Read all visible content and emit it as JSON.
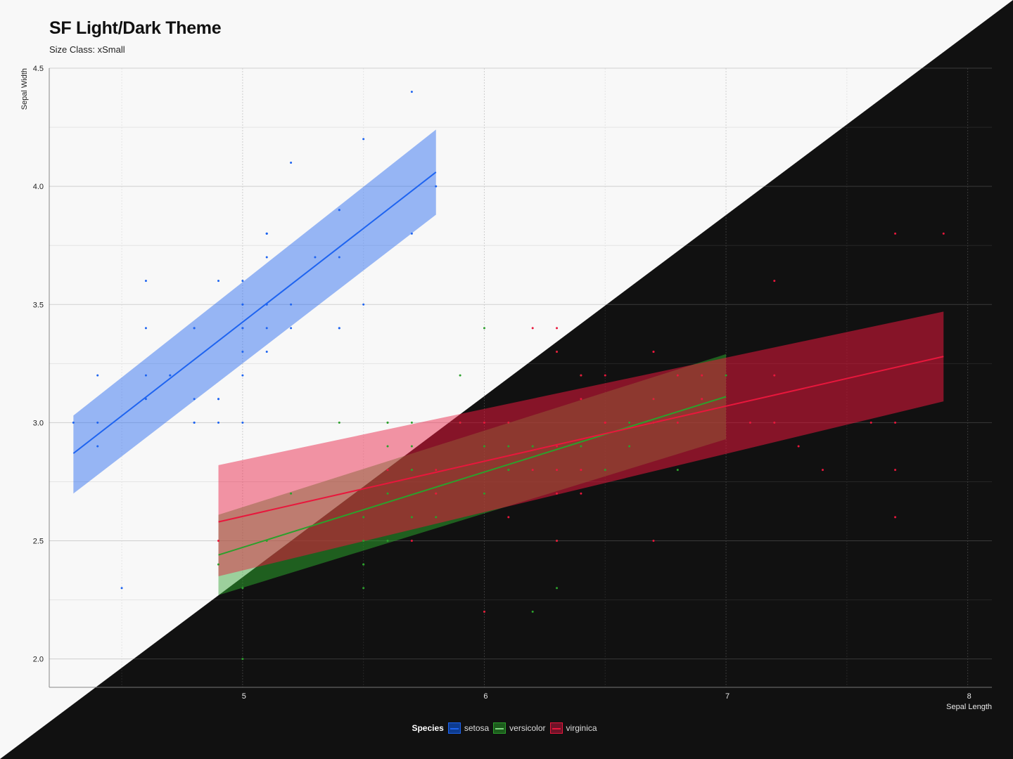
{
  "chart_data": {
    "type": "scatter",
    "title": "SF Light/Dark Theme",
    "subtitle": "Size Class: xSmall",
    "xlabel": "Sepal Length",
    "ylabel": "Sepal Width",
    "xlim": [
      4.2,
      8.1
    ],
    "ylim": [
      1.88,
      4.5
    ],
    "x_ticks": [
      5,
      6,
      7,
      8
    ],
    "y_ticks": [
      2.0,
      2.5,
      3.0,
      3.5,
      4.0,
      4.5
    ],
    "x_tick_labels": [
      "5",
      "6",
      "7",
      "8"
    ],
    "y_tick_labels": [
      "2.0",
      "2.5",
      "3.0",
      "3.5",
      "4.0",
      "4.5"
    ],
    "grid": true,
    "legend_title": "Species",
    "legend_position": "bottom-center",
    "colors": {
      "setosa": "#1e64f0",
      "versicolor": "#2ca02c",
      "virginica": "#e8173c",
      "light_bg": "#f8f8f8",
      "dark_bg": "#111111"
    },
    "series": [
      {
        "name": "setosa",
        "color": "#1e64f0",
        "x": [
          5.1,
          4.9,
          4.7,
          4.6,
          5.0,
          5.4,
          4.6,
          5.0,
          4.4,
          4.9,
          5.4,
          4.8,
          4.8,
          4.3,
          5.8,
          5.7,
          5.4,
          5.1,
          5.7,
          5.1,
          5.4,
          5.1,
          4.6,
          5.1,
          4.8,
          5.0,
          5.0,
          5.2,
          5.2,
          4.7,
          4.8,
          5.4,
          5.2,
          5.5,
          4.9,
          5.0,
          5.5,
          4.9,
          4.4,
          5.1,
          5.0,
          4.5,
          4.4,
          5.0,
          5.1,
          4.8,
          5.1,
          4.6,
          5.3,
          5.0
        ],
        "y": [
          3.5,
          3.0,
          3.2,
          3.1,
          3.6,
          3.9,
          3.4,
          3.4,
          2.9,
          3.1,
          3.7,
          3.4,
          3.0,
          3.0,
          4.0,
          4.4,
          3.9,
          3.5,
          3.8,
          3.8,
          3.4,
          3.7,
          3.6,
          3.3,
          3.4,
          3.0,
          3.4,
          3.5,
          3.4,
          3.2,
          3.1,
          3.4,
          4.1,
          4.2,
          3.1,
          3.2,
          3.5,
          3.6,
          3.0,
          3.4,
          3.5,
          2.3,
          3.2,
          3.5,
          3.8,
          3.0,
          3.8,
          3.2,
          3.7,
          3.3
        ],
        "fit": {
          "x_start": 4.3,
          "x_end": 5.8,
          "y_start": 2.87,
          "y_end": 4.06,
          "ci_start": [
            2.7,
            3.03
          ],
          "ci_end": [
            3.88,
            4.24
          ]
        }
      },
      {
        "name": "versicolor",
        "color": "#2ca02c",
        "x": [
          7.0,
          6.4,
          6.9,
          5.5,
          6.5,
          5.7,
          6.3,
          4.9,
          6.6,
          5.2,
          5.0,
          5.9,
          6.0,
          6.1,
          5.6,
          6.7,
          5.6,
          5.8,
          6.2,
          5.6,
          5.9,
          6.1,
          6.3,
          6.1,
          6.4,
          6.6,
          6.8,
          6.7,
          6.0,
          5.7,
          5.5,
          5.5,
          5.8,
          6.0,
          5.4,
          6.0,
          6.7,
          6.3,
          5.6,
          5.5,
          5.5,
          6.1,
          5.8,
          5.0,
          5.6,
          5.7,
          5.7,
          6.2,
          5.1,
          5.7
        ],
        "y": [
          3.2,
          3.2,
          3.1,
          2.3,
          2.8,
          2.8,
          3.3,
          2.4,
          2.9,
          2.7,
          2.0,
          3.0,
          2.2,
          2.9,
          2.9,
          3.1,
          3.0,
          2.7,
          2.2,
          2.5,
          3.2,
          2.8,
          2.5,
          2.8,
          2.9,
          3.0,
          2.8,
          3.0,
          2.9,
          2.6,
          2.4,
          2.4,
          2.7,
          2.7,
          3.0,
          3.4,
          3.1,
          2.3,
          3.0,
          2.5,
          2.6,
          3.0,
          2.6,
          2.3,
          2.7,
          3.0,
          2.9,
          2.9,
          2.5,
          2.8
        ],
        "fit": {
          "x_start": 4.9,
          "x_end": 7.0,
          "y_start": 2.44,
          "y_end": 3.11,
          "ci_start": [
            2.27,
            2.61
          ],
          "ci_end": [
            2.93,
            3.29
          ]
        }
      },
      {
        "name": "virginica",
        "color": "#e8173c",
        "x": [
          6.3,
          5.8,
          7.1,
          6.3,
          6.5,
          7.6,
          4.9,
          7.3,
          6.7,
          7.2,
          6.5,
          6.4,
          6.8,
          5.7,
          5.8,
          6.4,
          6.5,
          7.7,
          7.7,
          6.0,
          6.9,
          5.6,
          7.7,
          6.3,
          6.7,
          7.2,
          6.2,
          6.1,
          6.4,
          7.2,
          7.4,
          7.9,
          6.4,
          6.3,
          6.1,
          7.7,
          6.3,
          6.4,
          6.0,
          6.9,
          6.7,
          6.9,
          5.8,
          6.8,
          6.7,
          6.7,
          6.3,
          6.5,
          6.2,
          5.9
        ],
        "y": [
          3.3,
          2.7,
          3.0,
          2.9,
          3.0,
          3.0,
          2.5,
          2.9,
          2.5,
          3.6,
          3.2,
          2.7,
          3.0,
          2.5,
          2.8,
          3.2,
          3.0,
          3.8,
          2.6,
          2.2,
          3.2,
          2.8,
          2.8,
          2.7,
          3.3,
          3.2,
          2.8,
          3.0,
          2.8,
          3.0,
          2.8,
          3.8,
          2.8,
          2.8,
          2.6,
          3.0,
          3.4,
          3.1,
          3.0,
          3.1,
          3.1,
          3.1,
          2.7,
          3.2,
          3.3,
          3.0,
          2.5,
          3.0,
          3.4,
          3.0
        ],
        "fit": {
          "x_start": 4.9,
          "x_end": 7.9,
          "y_start": 2.58,
          "y_end": 3.28,
          "ci_start": [
            2.35,
            2.82
          ],
          "ci_end": [
            3.09,
            3.47
          ]
        }
      }
    ]
  }
}
